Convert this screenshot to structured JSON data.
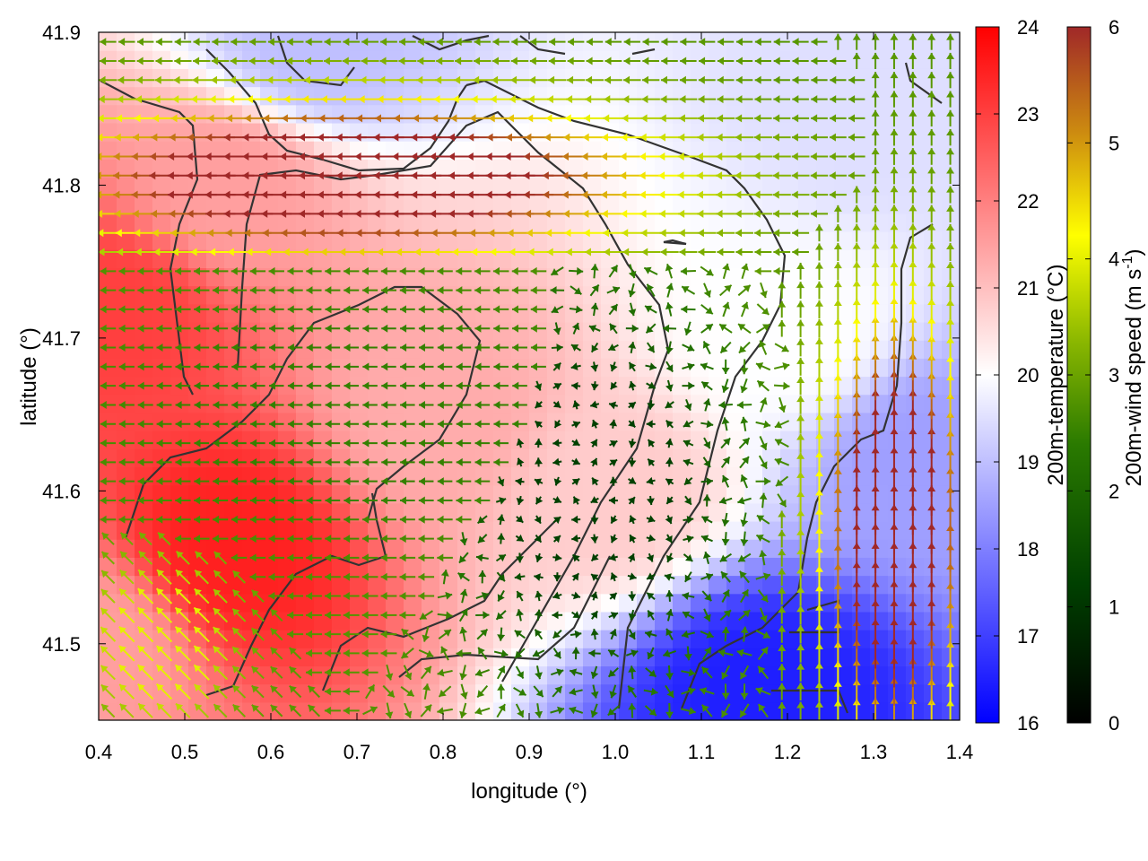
{
  "chart_data": {
    "type": "heatmap",
    "subtype": "vector-field-over-temperature-map",
    "xlabel": "longitude (°)",
    "ylabel": "latitude (°)",
    "xlim": [
      0.4,
      1.4
    ],
    "ylim": [
      41.45,
      41.9
    ],
    "x_ticks": [
      "0.4",
      "0.5",
      "0.6",
      "0.7",
      "0.8",
      "0.9",
      "1.0",
      "1.1",
      "1.2",
      "1.3",
      "1.4"
    ],
    "y_ticks": [
      "41.5",
      "41.6",
      "41.7",
      "41.8",
      "41.9"
    ],
    "x_tick_values": [
      0.4,
      0.5,
      0.6,
      0.7,
      0.8,
      0.9,
      1.0,
      1.1,
      1.2,
      1.3,
      1.4
    ],
    "y_tick_values": [
      41.5,
      41.6,
      41.7,
      41.8,
      41.9
    ],
    "grid": false,
    "temperature_colorbar": {
      "label": "200m-temperature (°C)",
      "range": [
        16,
        24
      ],
      "ticks": [
        "16",
        "17",
        "18",
        "19",
        "20",
        "21",
        "22",
        "23",
        "24"
      ],
      "colors": [
        "#0000ff",
        "#ffffff",
        "#ff0000"
      ]
    },
    "wind_colorbar": {
      "label": "200m-wind speed (m s",
      "label_sup": "-1",
      "label_end": ")",
      "range": [
        0,
        6
      ],
      "ticks": [
        "0",
        "1",
        "2",
        "3",
        "4",
        "5",
        "6"
      ],
      "colors": [
        "#000000",
        "#006400",
        "#7cb200",
        "#ffff00",
        "#cc8800",
        "#a02828"
      ]
    },
    "temperature_field": [
      {
        "lon": 0.4,
        "lat": 41.5,
        "value": 21.5
      },
      {
        "lon": 0.55,
        "lat": 41.56,
        "value": 23.5
      },
      {
        "lon": 0.42,
        "lat": 41.72,
        "value": 23.0
      },
      {
        "lon": 0.55,
        "lat": 41.8,
        "value": 21.5
      },
      {
        "lon": 0.8,
        "lat": 41.65,
        "value": 21.3
      },
      {
        "lon": 1.0,
        "lat": 41.6,
        "value": 20.8
      },
      {
        "lon": 1.17,
        "lat": 41.47,
        "value": 16.5
      },
      {
        "lon": 1.35,
        "lat": 41.62,
        "value": 18.5
      },
      {
        "lon": 0.65,
        "lat": 41.89,
        "value": 19.0
      },
      {
        "lon": 1.3,
        "lat": 41.85,
        "value": 19.5
      },
      {
        "lon": 1.2,
        "lat": 41.7,
        "value": 20.0
      }
    ],
    "wind_regimes": [
      {
        "lon_range": [
          0.4,
          1.0
        ],
        "lat_range": [
          41.76,
          41.85
        ],
        "speed": 6.0,
        "direction": "westward"
      },
      {
        "lon_range": [
          0.45,
          0.95
        ],
        "lat_range": [
          41.58,
          41.73
        ],
        "speed": 2.5,
        "direction": "westward"
      },
      {
        "lon_range": [
          0.85,
          1.1
        ],
        "lat_range": [
          41.5,
          41.7
        ],
        "speed": 1.2,
        "direction": "variable"
      },
      {
        "lon_range": [
          1.25,
          1.4
        ],
        "lat_range": [
          41.45,
          41.7
        ],
        "speed": 6.0,
        "direction": "northward"
      },
      {
        "lon_range": [
          0.4,
          0.55
        ],
        "lat_range": [
          41.45,
          41.55
        ],
        "speed": 4.0,
        "direction": "northwestward"
      }
    ]
  }
}
